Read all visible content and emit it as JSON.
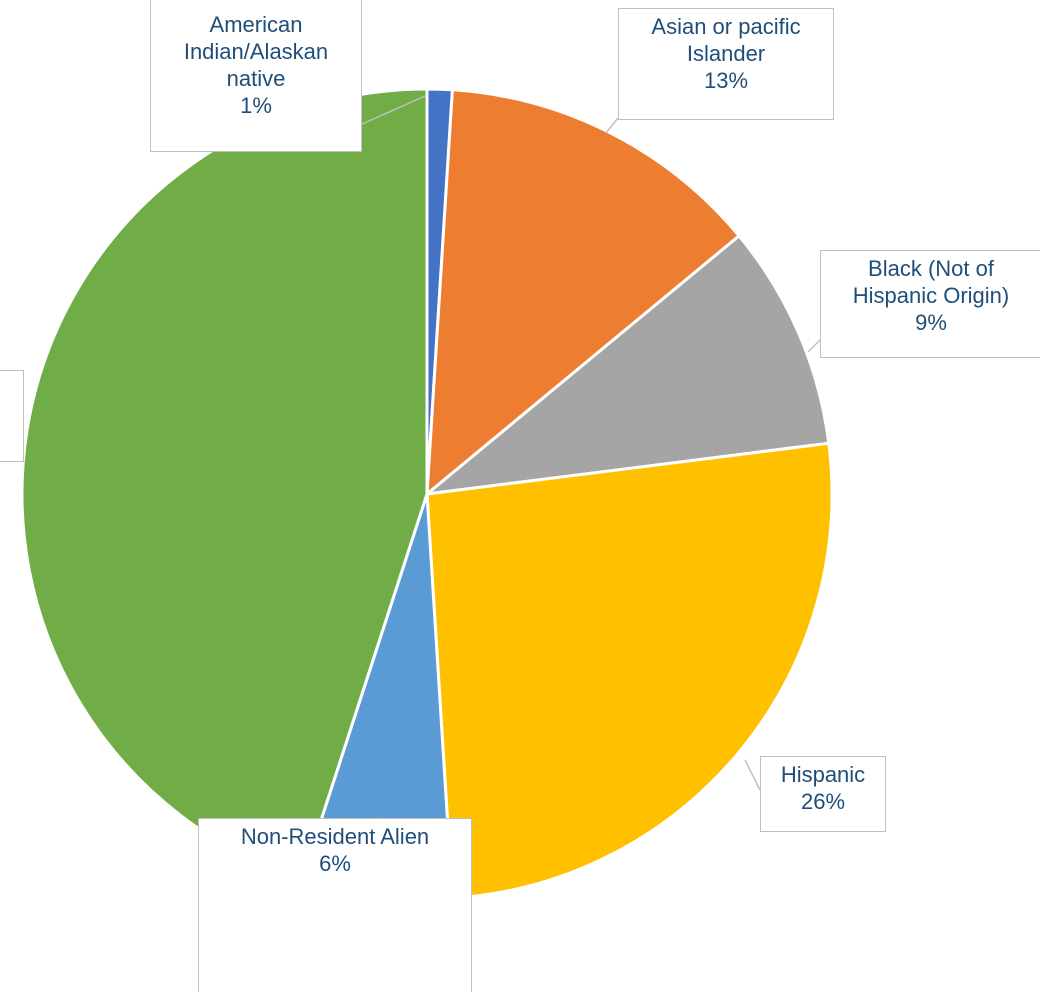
{
  "chart_data": {
    "type": "pie",
    "categories": [
      "American Indian/Alaskan native",
      "Asian or pacific Islander",
      "Black (Not of Hispanic Origin)",
      "Hispanic",
      "Non-Resident Alien",
      null
    ],
    "values": [
      1,
      13,
      9,
      26,
      6,
      45
    ],
    "value_labels": [
      "1%",
      "13%",
      "9%",
      "26%",
      "6%",
      null
    ],
    "colors": [
      "#4472c4",
      "#ed7d31",
      "#a5a5a5",
      "#ffc000",
      "#5b9bd5",
      "#70ad47"
    ]
  }
}
